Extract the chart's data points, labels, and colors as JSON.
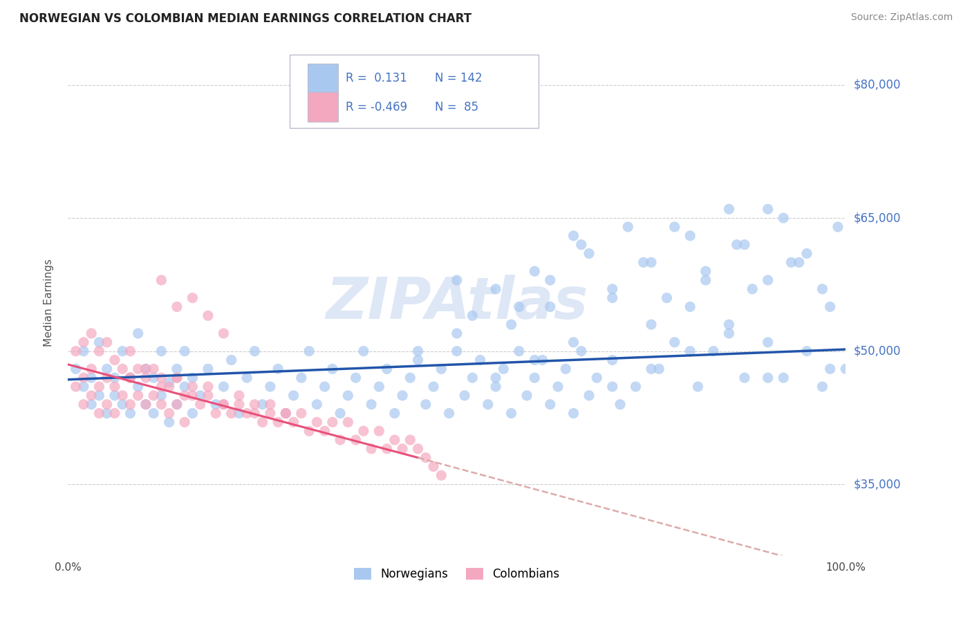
{
  "title": "NORWEGIAN VS COLOMBIAN MEDIAN EARNINGS CORRELATION CHART",
  "source_text": "Source: ZipAtlas.com",
  "ylabel": "Median Earnings",
  "watermark": "ZIPAtlas",
  "xmin": 0.0,
  "xmax": 1.0,
  "ymin": 27000,
  "ymax": 84000,
  "yticks": [
    35000,
    50000,
    65000,
    80000
  ],
  "ytick_labels": [
    "$35,000",
    "$50,000",
    "$65,000",
    "$80,000"
  ],
  "xtick_labels": [
    "0.0%",
    "100.0%"
  ],
  "blue_scatter_color": "#a8c8f0",
  "pink_scatter_color": "#f4a8c0",
  "blue_line_color": "#2255aa",
  "pink_line_color": "#e8507a",
  "pink_dash_color": "#ddaaaa",
  "background_color": "#ffffff",
  "grid_color": "#cccccc",
  "title_color": "#222222",
  "ytick_color": "#4472c4",
  "source_color": "#888888",
  "watermark_color": "#c8d8f0",
  "trend_line_blue": [
    [
      0.0,
      46800
    ],
    [
      1.0,
      50200
    ]
  ],
  "trend_line_pink_solid": [
    [
      0.0,
      48500
    ],
    [
      0.45,
      38000
    ]
  ],
  "trend_line_pink_dashed": [
    [
      0.45,
      38000
    ],
    [
      1.0,
      25000
    ]
  ],
  "norwegian_x": [
    0.01,
    0.02,
    0.02,
    0.03,
    0.03,
    0.04,
    0.04,
    0.05,
    0.05,
    0.06,
    0.06,
    0.07,
    0.07,
    0.08,
    0.08,
    0.09,
    0.09,
    0.1,
    0.1,
    0.11,
    0.11,
    0.12,
    0.12,
    0.13,
    0.13,
    0.14,
    0.14,
    0.15,
    0.15,
    0.16,
    0.16,
    0.17,
    0.18,
    0.19,
    0.2,
    0.21,
    0.22,
    0.23,
    0.24,
    0.25,
    0.26,
    0.27,
    0.28,
    0.29,
    0.3,
    0.31,
    0.32,
    0.33,
    0.34,
    0.35,
    0.36,
    0.37,
    0.38,
    0.39,
    0.4,
    0.41,
    0.42,
    0.43,
    0.44,
    0.45,
    0.46,
    0.47,
    0.48,
    0.49,
    0.5,
    0.51,
    0.52,
    0.53,
    0.54,
    0.55,
    0.56,
    0.57,
    0.58,
    0.59,
    0.6,
    0.61,
    0.62,
    0.63,
    0.64,
    0.65,
    0.66,
    0.67,
    0.68,
    0.7,
    0.71,
    0.73,
    0.75,
    0.76,
    0.78,
    0.8,
    0.81,
    0.83,
    0.85,
    0.87,
    0.88,
    0.9,
    0.92,
    0.93,
    0.95,
    0.97,
    0.98,
    1.0,
    0.5,
    0.52,
    0.55,
    0.57,
    0.6,
    0.62,
    0.65,
    0.67,
    0.7,
    0.72,
    0.75,
    0.77,
    0.8,
    0.82,
    0.85,
    0.87,
    0.9,
    0.92,
    0.95,
    0.97,
    0.99,
    0.58,
    0.62,
    0.66,
    0.7,
    0.74,
    0.78,
    0.82,
    0.86,
    0.9,
    0.94,
    0.98,
    0.45,
    0.5,
    0.55,
    0.6,
    0.65,
    0.7,
    0.75,
    0.8,
    0.85,
    0.9
  ],
  "norwegian_y": [
    48000,
    50000,
    46000,
    47000,
    44000,
    51000,
    45000,
    48000,
    43000,
    47000,
    45000,
    50000,
    44000,
    47000,
    43000,
    46000,
    52000,
    48000,
    44000,
    47000,
    43000,
    50000,
    45000,
    46500,
    42000,
    48000,
    44000,
    46000,
    50000,
    47000,
    43000,
    45000,
    48000,
    44000,
    46000,
    49000,
    43000,
    47000,
    50000,
    44000,
    46000,
    48000,
    43000,
    45000,
    47000,
    50000,
    44000,
    46000,
    48000,
    43000,
    45000,
    47000,
    50000,
    44000,
    46000,
    48000,
    43000,
    45000,
    47000,
    49000,
    44000,
    46000,
    48000,
    43000,
    50000,
    45000,
    47000,
    49000,
    44000,
    46000,
    48000,
    43000,
    50000,
    45000,
    47000,
    49000,
    44000,
    46000,
    48000,
    43000,
    50000,
    45000,
    47000,
    49000,
    44000,
    46000,
    53000,
    48000,
    51000,
    55000,
    46000,
    50000,
    53000,
    47000,
    57000,
    51000,
    47000,
    60000,
    50000,
    46000,
    55000,
    48000,
    58000,
    54000,
    57000,
    53000,
    59000,
    55000,
    63000,
    61000,
    57000,
    64000,
    60000,
    56000,
    63000,
    59000,
    66000,
    62000,
    58000,
    65000,
    61000,
    57000,
    64000,
    55000,
    58000,
    62000,
    56000,
    60000,
    64000,
    58000,
    62000,
    66000,
    60000,
    48000,
    50000,
    52000,
    47000,
    49000,
    51000,
    46000,
    48000,
    50000,
    52000,
    47000
  ],
  "colombian_x": [
    0.01,
    0.01,
    0.02,
    0.02,
    0.02,
    0.03,
    0.03,
    0.03,
    0.04,
    0.04,
    0.04,
    0.05,
    0.05,
    0.05,
    0.06,
    0.06,
    0.06,
    0.07,
    0.07,
    0.08,
    0.08,
    0.08,
    0.09,
    0.09,
    0.1,
    0.1,
    0.11,
    0.11,
    0.12,
    0.12,
    0.13,
    0.13,
    0.14,
    0.14,
    0.15,
    0.15,
    0.16,
    0.17,
    0.18,
    0.19,
    0.2,
    0.21,
    0.22,
    0.23,
    0.24,
    0.25,
    0.26,
    0.27,
    0.28,
    0.29,
    0.3,
    0.31,
    0.32,
    0.33,
    0.34,
    0.35,
    0.36,
    0.37,
    0.38,
    0.39,
    0.4,
    0.41,
    0.42,
    0.43,
    0.44,
    0.45,
    0.46,
    0.47,
    0.48,
    0.12,
    0.14,
    0.16,
    0.18,
    0.2,
    0.08,
    0.1,
    0.12,
    0.14,
    0.16,
    0.18,
    0.2,
    0.22,
    0.24,
    0.26,
    0.28
  ],
  "colombian_y": [
    50000,
    46000,
    51000,
    47000,
    44000,
    52000,
    48000,
    45000,
    50000,
    46000,
    43000,
    51000,
    47000,
    44000,
    49000,
    46000,
    43000,
    48000,
    45000,
    50000,
    47000,
    44000,
    48000,
    45000,
    47000,
    44000,
    48000,
    45000,
    47000,
    44000,
    46000,
    43000,
    47000,
    44000,
    45000,
    42000,
    46000,
    44000,
    45000,
    43000,
    44000,
    43000,
    44000,
    43000,
    44000,
    42000,
    43000,
    42000,
    43000,
    42000,
    43000,
    41000,
    42000,
    41000,
    42000,
    40000,
    42000,
    40000,
    41000,
    39000,
    41000,
    39000,
    40000,
    39000,
    40000,
    39000,
    38000,
    37000,
    36000,
    58000,
    55000,
    56000,
    54000,
    52000,
    47000,
    48000,
    46000,
    47000,
    45000,
    46000,
    44000,
    45000,
    43000,
    44000,
    43000
  ]
}
